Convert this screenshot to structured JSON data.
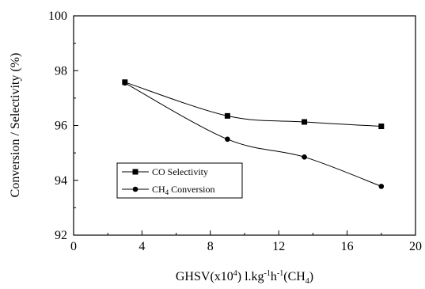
{
  "chart_data": {
    "type": "scatter",
    "title": "",
    "xlabel": "GHSV(x10",
    "xlabel_parts": {
      "pre": "GHSV(x10",
      "sup1": "4",
      "mid1": ") l.kg",
      "sup2": "-1",
      "mid2": "h",
      "sup3": "-1",
      "mid3": "(CH",
      "sub": "4",
      "post": ")"
    },
    "ylabel": "Conversion / Selectivity (%)",
    "xlim": [
      0,
      20
    ],
    "ylim": [
      92,
      100
    ],
    "x_ticks": [
      0,
      4,
      8,
      12,
      16,
      20
    ],
    "y_ticks": [
      92,
      94,
      96,
      98,
      100
    ],
    "x_tick_labels": [
      "0",
      "4",
      "8",
      "12",
      "16",
      "20"
    ],
    "y_tick_labels": [
      "92",
      "94",
      "96",
      "98",
      "100"
    ],
    "grid": false,
    "legend_position": "lower-left",
    "series": [
      {
        "name": "CO Selectivity",
        "marker": "square",
        "x": [
          3,
          9,
          13.5,
          18
        ],
        "y": [
          97.58,
          96.35,
          96.13,
          95.97
        ]
      },
      {
        "name": "CH4 Conversion",
        "name_parts": {
          "pre": "CH",
          "sub": "4",
          "post": " Conversion"
        },
        "marker": "circle",
        "x": [
          3,
          9,
          13.5,
          18
        ],
        "y": [
          97.55,
          95.5,
          94.85,
          93.78
        ]
      }
    ]
  }
}
